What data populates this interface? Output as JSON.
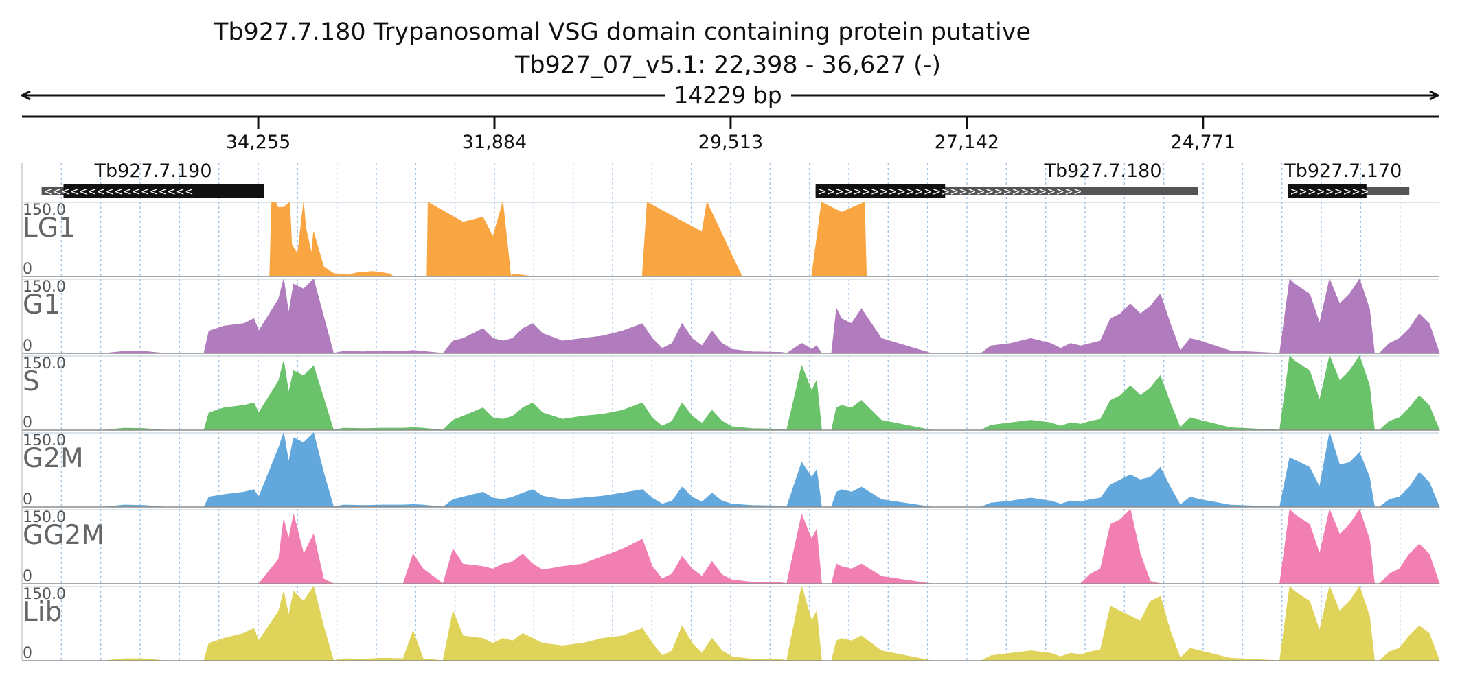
{
  "title": {
    "line1": "Tb927.7.180  Trypanosomal VSG domain containing protein  putative",
    "line2": "Tb927_07_v5.1: 22,398 - 36,627 (-)",
    "span_label": "14229 bp"
  },
  "chart_data": {
    "type": "area",
    "region": {
      "chromosome": "Tb927_07_v5.1",
      "start": 22398,
      "end": 36627,
      "strand": "-"
    },
    "xlim": [
      36627,
      22398
    ],
    "x_ticks": [
      {
        "value": 34255,
        "label": "34,255"
      },
      {
        "value": 31884,
        "label": "31,884"
      },
      {
        "value": 29513,
        "label": "29,513"
      },
      {
        "value": 27142,
        "label": "27,142"
      },
      {
        "value": 24771,
        "label": "24,771"
      }
    ],
    "genes": [
      {
        "name": "Tb927.7.190",
        "start": 34200,
        "end": 36430,
        "cds_start": 34200,
        "cds_end": 36210,
        "strand": "-"
      },
      {
        "name": "Tb927.7.180",
        "start": 24820,
        "end": 28660,
        "cds_start": 27360,
        "cds_end": 28660,
        "strand": "+"
      },
      {
        "name": "Tb927.7.170",
        "start": 22700,
        "end": 23920,
        "cds_start": 23130,
        "cds_end": 23920,
        "strand": "+"
      }
    ],
    "y_scale": {
      "max_label": "150.0",
      "min_label": "0",
      "ylim": [
        0,
        150
      ]
    },
    "series": [
      {
        "name": "LG1",
        "color": "#f9a642",
        "x": [
          36627,
          35480,
          35460,
          35440,
          35400,
          34300,
          34140,
          34120,
          34080,
          34060,
          34000,
          33940,
          33920,
          33860,
          33800,
          33780,
          33720,
          33700,
          33600,
          33500,
          33350,
          33250,
          33100,
          32930,
          32900,
          32560,
          32550,
          32200,
          32000,
          31900,
          31800,
          31720,
          31700,
          31500,
          30400,
          30350,
          29800,
          29750,
          29400,
          29350,
          28920,
          28700,
          28600,
          28400,
          28170,
          28150,
          26000,
          25600,
          25400,
          25250,
          25200,
          24900,
          24400,
          22398
        ],
        "y": [
          0,
          0,
          0,
          0,
          0,
          0,
          0,
          150,
          150,
          140,
          140,
          150,
          65,
          45,
          150,
          100,
          45,
          90,
          20,
          6,
          3,
          8,
          10,
          5,
          0,
          0,
          150,
          110,
          120,
          80,
          150,
          0,
          5,
          0,
          0,
          150,
          90,
          150,
          0,
          0,
          0,
          0,
          150,
          130,
          150,
          0,
          0,
          0,
          0,
          0,
          0,
          0,
          0,
          0
        ]
      },
      {
        "name": "G1",
        "color": "#b07cbd",
        "x": [
          36627,
          35800,
          35600,
          35400,
          35200,
          34800,
          34750,
          34600,
          34400,
          34300,
          34250,
          34050,
          34000,
          33950,
          33900,
          33800,
          33700,
          33600,
          33500,
          33400,
          33200,
          33000,
          32800,
          32700,
          32600,
          32400,
          32300,
          32200,
          32000,
          31900,
          31800,
          31700,
          31600,
          31500,
          31400,
          31200,
          31000,
          30800,
          30600,
          30400,
          30300,
          30200,
          30100,
          30000,
          29900,
          29800,
          29700,
          29600,
          29500,
          29300,
          29000,
          28950,
          28800,
          28700,
          28650,
          28600,
          28500,
          28450,
          28400,
          28300,
          28200,
          28000,
          27500,
          27000,
          26900,
          26700,
          26500,
          26300,
          26200,
          26100,
          26000,
          25900,
          25800,
          25700,
          25600,
          25500,
          25400,
          25300,
          25200,
          25100,
          25000,
          24900,
          24800,
          24500,
          24000,
          23900,
          23850,
          23700,
          23600,
          23500,
          23400,
          23300,
          23200,
          23100,
          23050,
          23000,
          22900,
          22800,
          22700,
          22600,
          22500,
          22398
        ],
        "y": [
          0,
          0,
          4,
          4,
          0,
          0,
          45,
          55,
          60,
          70,
          45,
          110,
          150,
          80,
          140,
          130,
          150,
          75,
          0,
          4,
          3,
          5,
          4,
          6,
          4,
          0,
          25,
          30,
          50,
          30,
          25,
          30,
          50,
          60,
          40,
          25,
          30,
          35,
          45,
          60,
          30,
          10,
          20,
          60,
          30,
          15,
          45,
          20,
          8,
          3,
          2,
          0,
          20,
          8,
          15,
          0,
          0,
          90,
          70,
          60,
          90,
          30,
          0,
          0,
          15,
          20,
          30,
          20,
          10,
          20,
          15,
          20,
          25,
          70,
          80,
          100,
          80,
          95,
          120,
          60,
          5,
          30,
          25,
          5,
          0,
          150,
          140,
          120,
          60,
          150,
          100,
          120,
          150,
          90,
          0,
          0,
          20,
          30,
          50,
          80,
          60,
          0
        ]
      },
      {
        "name": "S",
        "color": "#6ac26a",
        "x": [
          36627,
          35800,
          35600,
          35400,
          35200,
          34800,
          34750,
          34600,
          34400,
          34300,
          34250,
          34050,
          34000,
          33950,
          33900,
          33800,
          33700,
          33600,
          33500,
          33400,
          33200,
          33000,
          32800,
          32700,
          32600,
          32400,
          32300,
          32200,
          32000,
          31900,
          31800,
          31700,
          31600,
          31500,
          31400,
          31200,
          31000,
          30800,
          30600,
          30400,
          30300,
          30200,
          30100,
          30000,
          29900,
          29800,
          29700,
          29600,
          29500,
          29300,
          29000,
          28950,
          28800,
          28700,
          28650,
          28600,
          28500,
          28450,
          28400,
          28300,
          28200,
          28000,
          27500,
          27000,
          26900,
          26700,
          26500,
          26300,
          26200,
          26100,
          26000,
          25900,
          25800,
          25700,
          25600,
          25500,
          25400,
          25300,
          25200,
          25100,
          25000,
          24900,
          24800,
          24500,
          24000,
          23900,
          23850,
          23700,
          23600,
          23500,
          23400,
          23300,
          23200,
          23100,
          23050,
          23000,
          22900,
          22800,
          22700,
          22600,
          22500,
          22398
        ],
        "y": [
          0,
          0,
          4,
          3,
          0,
          0,
          35,
          45,
          50,
          55,
          35,
          100,
          140,
          75,
          120,
          110,
          130,
          65,
          0,
          4,
          3,
          4,
          4,
          5,
          4,
          0,
          20,
          28,
          45,
          25,
          22,
          28,
          45,
          55,
          35,
          22,
          28,
          32,
          40,
          55,
          25,
          8,
          18,
          55,
          28,
          14,
          40,
          18,
          7,
          3,
          2,
          0,
          130,
          80,
          100,
          0,
          0,
          45,
          50,
          45,
          60,
          20,
          0,
          0,
          10,
          15,
          20,
          15,
          8,
          15,
          12,
          18,
          22,
          60,
          70,
          90,
          70,
          85,
          110,
          55,
          5,
          25,
          20,
          5,
          0,
          150,
          140,
          120,
          60,
          150,
          100,
          120,
          150,
          90,
          0,
          0,
          18,
          25,
          45,
          70,
          50,
          0
        ]
      },
      {
        "name": "G2M",
        "color": "#63a8dc",
        "x": [
          36627,
          35800,
          35600,
          35400,
          35200,
          34800,
          34750,
          34600,
          34400,
          34300,
          34250,
          34050,
          34000,
          33950,
          33900,
          33800,
          33700,
          33600,
          33500,
          33400,
          33200,
          33000,
          32800,
          32700,
          32600,
          32400,
          32300,
          32200,
          32000,
          31900,
          31800,
          31700,
          31600,
          31500,
          31400,
          31200,
          31000,
          30800,
          30600,
          30400,
          30300,
          30200,
          30100,
          30000,
          29900,
          29800,
          29700,
          29600,
          29500,
          29300,
          29000,
          28950,
          28800,
          28700,
          28650,
          28600,
          28500,
          28450,
          28400,
          28300,
          28200,
          28000,
          27500,
          27000,
          26900,
          26700,
          26500,
          26300,
          26200,
          26100,
          26000,
          25900,
          25800,
          25700,
          25600,
          25500,
          25400,
          25300,
          25200,
          25100,
          25000,
          24900,
          24800,
          24500,
          24000,
          23900,
          23850,
          23700,
          23600,
          23500,
          23400,
          23300,
          23200,
          23100,
          23050,
          23000,
          22900,
          22800,
          22700,
          22600,
          22500,
          22398
        ],
        "y": [
          0,
          0,
          4,
          3,
          0,
          0,
          20,
          25,
          30,
          35,
          20,
          120,
          150,
          90,
          140,
          130,
          150,
          70,
          0,
          4,
          3,
          4,
          4,
          5,
          4,
          0,
          15,
          20,
          30,
          18,
          15,
          20,
          28,
          35,
          22,
          15,
          18,
          22,
          28,
          35,
          18,
          6,
          12,
          40,
          20,
          10,
          28,
          12,
          6,
          3,
          2,
          0,
          90,
          60,
          75,
          0,
          0,
          30,
          35,
          30,
          40,
          15,
          0,
          0,
          8,
          12,
          18,
          12,
          6,
          12,
          10,
          15,
          18,
          45,
          55,
          65,
          55,
          60,
          80,
          40,
          4,
          20,
          15,
          4,
          0,
          100,
          95,
          80,
          40,
          150,
          85,
          90,
          110,
          60,
          0,
          0,
          15,
          20,
          40,
          70,
          50,
          0
        ]
      },
      {
        "name": "GG2M",
        "color": "#f27fb2",
        "x": [
          36627,
          35800,
          35600,
          35400,
          35200,
          34800,
          34750,
          34600,
          34400,
          34300,
          34250,
          34050,
          34000,
          33950,
          33900,
          33800,
          33700,
          33600,
          33500,
          33400,
          33200,
          33000,
          32800,
          32700,
          32600,
          32400,
          32300,
          32200,
          32000,
          31900,
          31800,
          31700,
          31600,
          31500,
          31400,
          31200,
          31000,
          30800,
          30600,
          30400,
          30300,
          30200,
          30100,
          30000,
          29900,
          29800,
          29700,
          29600,
          29500,
          29300,
          29000,
          28950,
          28800,
          28700,
          28650,
          28600,
          28500,
          28450,
          28400,
          28300,
          28200,
          28000,
          27500,
          27000,
          26900,
          26700,
          26500,
          26300,
          26200,
          26100,
          26000,
          25900,
          25800,
          25700,
          25600,
          25500,
          25400,
          25300,
          25200,
          25100,
          25000,
          24900,
          24800,
          24500,
          24000,
          23900,
          23850,
          23700,
          23600,
          23500,
          23400,
          23300,
          23200,
          23100,
          23050,
          23000,
          22900,
          22800,
          22700,
          22600,
          22500,
          22398
        ],
        "y": [
          0,
          0,
          0,
          0,
          0,
          0,
          0,
          0,
          0,
          0,
          0,
          50,
          130,
          90,
          140,
          60,
          100,
          10,
          0,
          0,
          0,
          0,
          0,
          60,
          30,
          0,
          70,
          40,
          35,
          30,
          40,
          45,
          60,
          40,
          28,
          35,
          40,
          55,
          70,
          90,
          35,
          10,
          20,
          55,
          30,
          15,
          45,
          18,
          8,
          3,
          2,
          0,
          140,
          90,
          110,
          0,
          0,
          40,
          35,
          30,
          40,
          15,
          0,
          0,
          0,
          0,
          0,
          0,
          0,
          0,
          0,
          20,
          30,
          120,
          130,
          150,
          60,
          5,
          0,
          0,
          0,
          0,
          0,
          0,
          0,
          150,
          140,
          120,
          60,
          150,
          100,
          120,
          150,
          90,
          0,
          0,
          20,
          30,
          60,
          80,
          60,
          0
        ]
      },
      {
        "name": "Lib",
        "color": "#dfd35a",
        "x": [
          36627,
          35800,
          35600,
          35400,
          35200,
          34800,
          34750,
          34600,
          34400,
          34300,
          34250,
          34050,
          34000,
          33950,
          33900,
          33800,
          33700,
          33600,
          33500,
          33400,
          33200,
          33000,
          32800,
          32700,
          32600,
          32400,
          32300,
          32200,
          32000,
          31900,
          31800,
          31700,
          31600,
          31500,
          31400,
          31200,
          31000,
          30800,
          30600,
          30400,
          30300,
          30200,
          30100,
          30000,
          29900,
          29800,
          29700,
          29600,
          29500,
          29300,
          29000,
          28950,
          28800,
          28700,
          28650,
          28600,
          28500,
          28450,
          28400,
          28300,
          28200,
          28000,
          27500,
          27000,
          26900,
          26700,
          26500,
          26300,
          26200,
          26100,
          26000,
          25900,
          25800,
          25700,
          25600,
          25500,
          25400,
          25300,
          25200,
          25100,
          25000,
          24900,
          24800,
          24500,
          24000,
          23900,
          23850,
          23700,
          23600,
          23500,
          23400,
          23300,
          23200,
          23100,
          23050,
          23000,
          22900,
          22800,
          22700,
          22600,
          22500,
          22398
        ],
        "y": [
          0,
          0,
          4,
          4,
          0,
          0,
          35,
          45,
          55,
          65,
          40,
          100,
          140,
          90,
          140,
          120,
          150,
          70,
          0,
          4,
          3,
          5,
          4,
          60,
          4,
          0,
          100,
          50,
          45,
          35,
          45,
          40,
          55,
          45,
          35,
          30,
          35,
          45,
          50,
          65,
          35,
          10,
          20,
          70,
          35,
          15,
          45,
          20,
          8,
          3,
          2,
          0,
          150,
          80,
          100,
          0,
          0,
          40,
          45,
          40,
          50,
          20,
          0,
          0,
          10,
          15,
          20,
          15,
          8,
          15,
          12,
          18,
          22,
          110,
          100,
          90,
          80,
          120,
          130,
          60,
          5,
          25,
          20,
          5,
          0,
          150,
          140,
          120,
          60,
          150,
          100,
          120,
          150,
          90,
          0,
          0,
          18,
          25,
          50,
          70,
          55,
          0
        ]
      }
    ]
  }
}
